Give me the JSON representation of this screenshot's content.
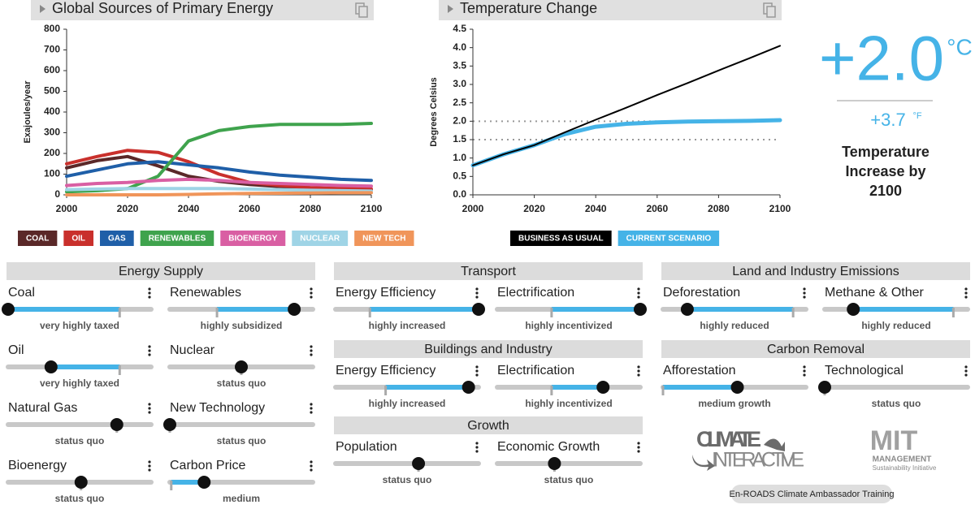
{
  "chart_data": [
    {
      "type": "line",
      "title": "Global Sources of Primary Energy",
      "y_label": "Exajoules/year",
      "x": [
        2000,
        2010,
        2020,
        2030,
        2040,
        2050,
        2060,
        2070,
        2080,
        2090,
        2100
      ],
      "xlim": [
        2000,
        2100
      ],
      "xticks": [
        2000,
        2020,
        2040,
        2060,
        2080,
        2100
      ],
      "ylim": [
        0,
        800
      ],
      "yticks": [
        0,
        100,
        200,
        300,
        400,
        500,
        600,
        700,
        800
      ],
      "series": [
        {
          "name": "COAL",
          "color": "#5a2828",
          "values": [
            130,
            165,
            185,
            140,
            90,
            65,
            50,
            40,
            32,
            27,
            25
          ]
        },
        {
          "name": "OIL",
          "color": "#c9302c",
          "values": [
            150,
            185,
            215,
            205,
            160,
            100,
            60,
            45,
            35,
            30,
            28
          ]
        },
        {
          "name": "GAS",
          "color": "#1f5fa8",
          "values": [
            90,
            120,
            150,
            160,
            145,
            130,
            110,
            95,
            85,
            75,
            70
          ]
        },
        {
          "name": "RENEWABLES",
          "color": "#3fa34d",
          "values": [
            15,
            20,
            30,
            90,
            260,
            310,
            330,
            340,
            340,
            340,
            345
          ]
        },
        {
          "name": "BIOENERGY",
          "color": "#d95fa3",
          "values": [
            45,
            55,
            60,
            70,
            75,
            70,
            60,
            55,
            50,
            45,
            42
          ]
        },
        {
          "name": "NUCLEAR",
          "color": "#9fd4e6",
          "values": [
            25,
            28,
            30,
            30,
            30,
            30,
            28,
            25,
            22,
            20,
            18
          ]
        },
        {
          "name": "NEW TECH",
          "color": "#f0955a",
          "values": [
            0,
            0,
            0,
            0,
            2,
            5,
            7,
            8,
            9,
            10,
            10
          ]
        }
      ]
    },
    {
      "type": "line",
      "title": "Temperature Change",
      "y_label": "Degrees Celsius",
      "x": [
        2000,
        2010,
        2020,
        2030,
        2040,
        2050,
        2060,
        2070,
        2080,
        2090,
        2100
      ],
      "xlim": [
        2000,
        2100
      ],
      "xticks": [
        2000,
        2020,
        2040,
        2060,
        2080,
        2100
      ],
      "ylim": [
        0,
        4.5
      ],
      "yticks": [
        {
          "value": 0,
          "label": "0.0"
        },
        0.5,
        {
          "value": 1,
          "label": "1.0"
        },
        1.5,
        {
          "value": 2,
          "label": "2.0"
        },
        2.5,
        {
          "value": 3,
          "label": "3.0"
        },
        3.5,
        {
          "value": 4,
          "label": "4.0"
        },
        4.5
      ],
      "reference_lines": [
        1.5,
        2
      ],
      "series": [
        {
          "name": "BUSINESS AS USUAL",
          "color": "#000000",
          "values": [
            0.8,
            1.1,
            1.35,
            1.7,
            2.04,
            2.37,
            2.71,
            3.04,
            3.38,
            3.71,
            4.05
          ]
        },
        {
          "name": "CURRENT SCENARIO",
          "color": "#45b3e7",
          "values": [
            0.8,
            1.1,
            1.35,
            1.65,
            1.85,
            1.93,
            1.97,
            1.99,
            2.0,
            2.01,
            2.03
          ]
        }
      ]
    }
  ],
  "temperature": {
    "value_c": "+2.0",
    "unit_c": "°C",
    "value_f": "+3.7",
    "unit_f": "°F",
    "caption": [
      "Temperature",
      "Increase by",
      "2100"
    ]
  },
  "sections": [
    {
      "title": "Energy Supply",
      "sliders": [
        {
          "label": "Coal",
          "setting": "very highly taxed",
          "position": 0,
          "status_quo": 0.78
        },
        {
          "label": "Renewables",
          "setting": "highly subsidized",
          "position": 0.87,
          "status_quo": 0.33
        },
        {
          "label": "Oil",
          "setting": "very highly taxed",
          "position": 0.3,
          "status_quo": 0.78
        },
        {
          "label": "Nuclear",
          "setting": "status quo",
          "position": 0.5,
          "status_quo": 0.5
        },
        {
          "label": "Natural Gas",
          "setting": "status quo",
          "position": 0.76,
          "status_quo": 0.76
        },
        {
          "label": "New Technology",
          "setting": "status quo",
          "position": 0,
          "status_quo": 0
        },
        {
          "label": "Bioenergy",
          "setting": "status quo",
          "position": 0.51,
          "status_quo": 0.51
        },
        {
          "label": "Carbon Price",
          "setting": "medium",
          "position": 0.24,
          "status_quo": 0.01
        }
      ]
    },
    {
      "title": "Transport",
      "sliders": [
        {
          "label": "Energy Efficiency",
          "setting": "highly increased",
          "position": 1,
          "status_quo": 0.24
        },
        {
          "label": "Electrification",
          "setting": "highly incentivized",
          "position": 1,
          "status_quo": 0.38
        }
      ]
    },
    {
      "title": "Buildings and Industry",
      "sliders": [
        {
          "label": "Energy Efficiency",
          "setting": "highly increased",
          "position": 0.93,
          "status_quo": 0.35
        },
        {
          "label": "Electrification",
          "setting": "highly incentivized",
          "position": 0.74,
          "status_quo": 0.38
        }
      ]
    },
    {
      "title": "Growth",
      "sliders": [
        {
          "label": "Population",
          "setting": "status quo",
          "position": 0.58,
          "status_quo": 0.58
        },
        {
          "label": "Economic Growth",
          "setting": "status quo",
          "position": 0.4,
          "status_quo": 0.4
        }
      ]
    },
    {
      "title": "Land and Industry Emissions",
      "sliders": [
        {
          "label": "Deforestation",
          "setting": "highly reduced",
          "position": 0.17,
          "status_quo": 0.91
        },
        {
          "label": "Methane & Other",
          "setting": "highly reduced",
          "position": 0.2,
          "status_quo": 0.9
        }
      ]
    },
    {
      "title": "Carbon Removal",
      "sliders": [
        {
          "label": "Afforestation",
          "setting": "medium growth",
          "position": 0.52,
          "status_quo": 0
        },
        {
          "label": "Technological",
          "setting": "status quo",
          "position": 0,
          "status_quo": 0
        }
      ]
    }
  ],
  "logos": {
    "climate": "CLIMATE",
    "interactive": "INTERACTIVE",
    "mit": "MIT",
    "management": "MANAGEMENT",
    "initiative": "Sustainability Initiative"
  },
  "button": "En-ROADS Climate Ambassador Training"
}
